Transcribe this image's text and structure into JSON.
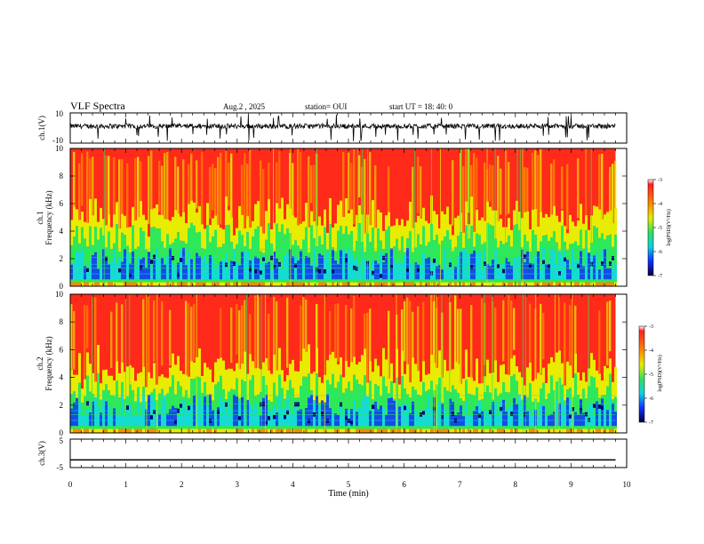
{
  "header": {
    "title": "VLF Spectra",
    "date": "Aug.2  , 2025",
    "station": "station= OUI",
    "start": "start  UT  =   18: 40: 0"
  },
  "chart_data": [
    {
      "type": "line",
      "name": "ch1-waveform",
      "ylabel": "ch.1(V)",
      "ylim": [
        -10,
        10
      ],
      "yticks": [
        "10",
        "-10"
      ],
      "xlim": [
        0,
        9.8
      ],
      "description_series": "noisy waveform centered slightly above 0 V with sparse negative spikes"
    },
    {
      "type": "heatmap",
      "name": "ch1-spectrogram",
      "ylabel_top": "ch.1",
      "ylabel": "Frequency  (kHz)",
      "ylim": [
        0,
        10
      ],
      "yticks": [
        "0",
        "2",
        "4",
        "6",
        "8",
        "10"
      ],
      "xlim": [
        0,
        9.8
      ],
      "low_band_top_khz": 3.5,
      "colorbar": {
        "label": "log(PSD)(V²/Hz)",
        "ticks": [
          "-3",
          "-4",
          "-5",
          "-6",
          "-7"
        ],
        "range": [
          -7,
          -3
        ]
      }
    },
    {
      "type": "heatmap",
      "name": "ch2-spectrogram",
      "ylabel_top": "ch.2",
      "ylabel": "Frequency  (kHz)",
      "ylim": [
        0,
        10
      ],
      "yticks": [
        "0",
        "2",
        "4",
        "6",
        "8",
        "10"
      ],
      "xlim": [
        0,
        9.8
      ],
      "low_band_top_khz": 3.2,
      "colorbar": {
        "label": "log(PSD)(V²/Hz)",
        "ticks": [
          "-3",
          "-4",
          "-5",
          "-6",
          "-7"
        ],
        "range": [
          -7,
          -3
        ]
      }
    },
    {
      "type": "line",
      "name": "ch3-trace",
      "ylabel": "ch.3(V)",
      "ylim": [
        -5,
        5
      ],
      "yticks": [
        "5",
        "-5"
      ],
      "xlim": [
        0,
        9.8
      ],
      "x": [
        0,
        9.8
      ],
      "y": [
        -2.3,
        -2.3
      ]
    }
  ],
  "xaxis": {
    "label": "Time  (min)",
    "range": [
      0,
      10
    ],
    "ticks": [
      "0",
      "1",
      "2",
      "3",
      "4",
      "5",
      "6",
      "7",
      "8",
      "9",
      "10"
    ]
  },
  "colors": {
    "red": "#ff2a1a",
    "orange": "#ff8a00",
    "yellow": "#e8ec00",
    "green": "#2ee85a",
    "cyan": "#10d8e8",
    "blue": "#1030ff",
    "navy": "#000070"
  }
}
